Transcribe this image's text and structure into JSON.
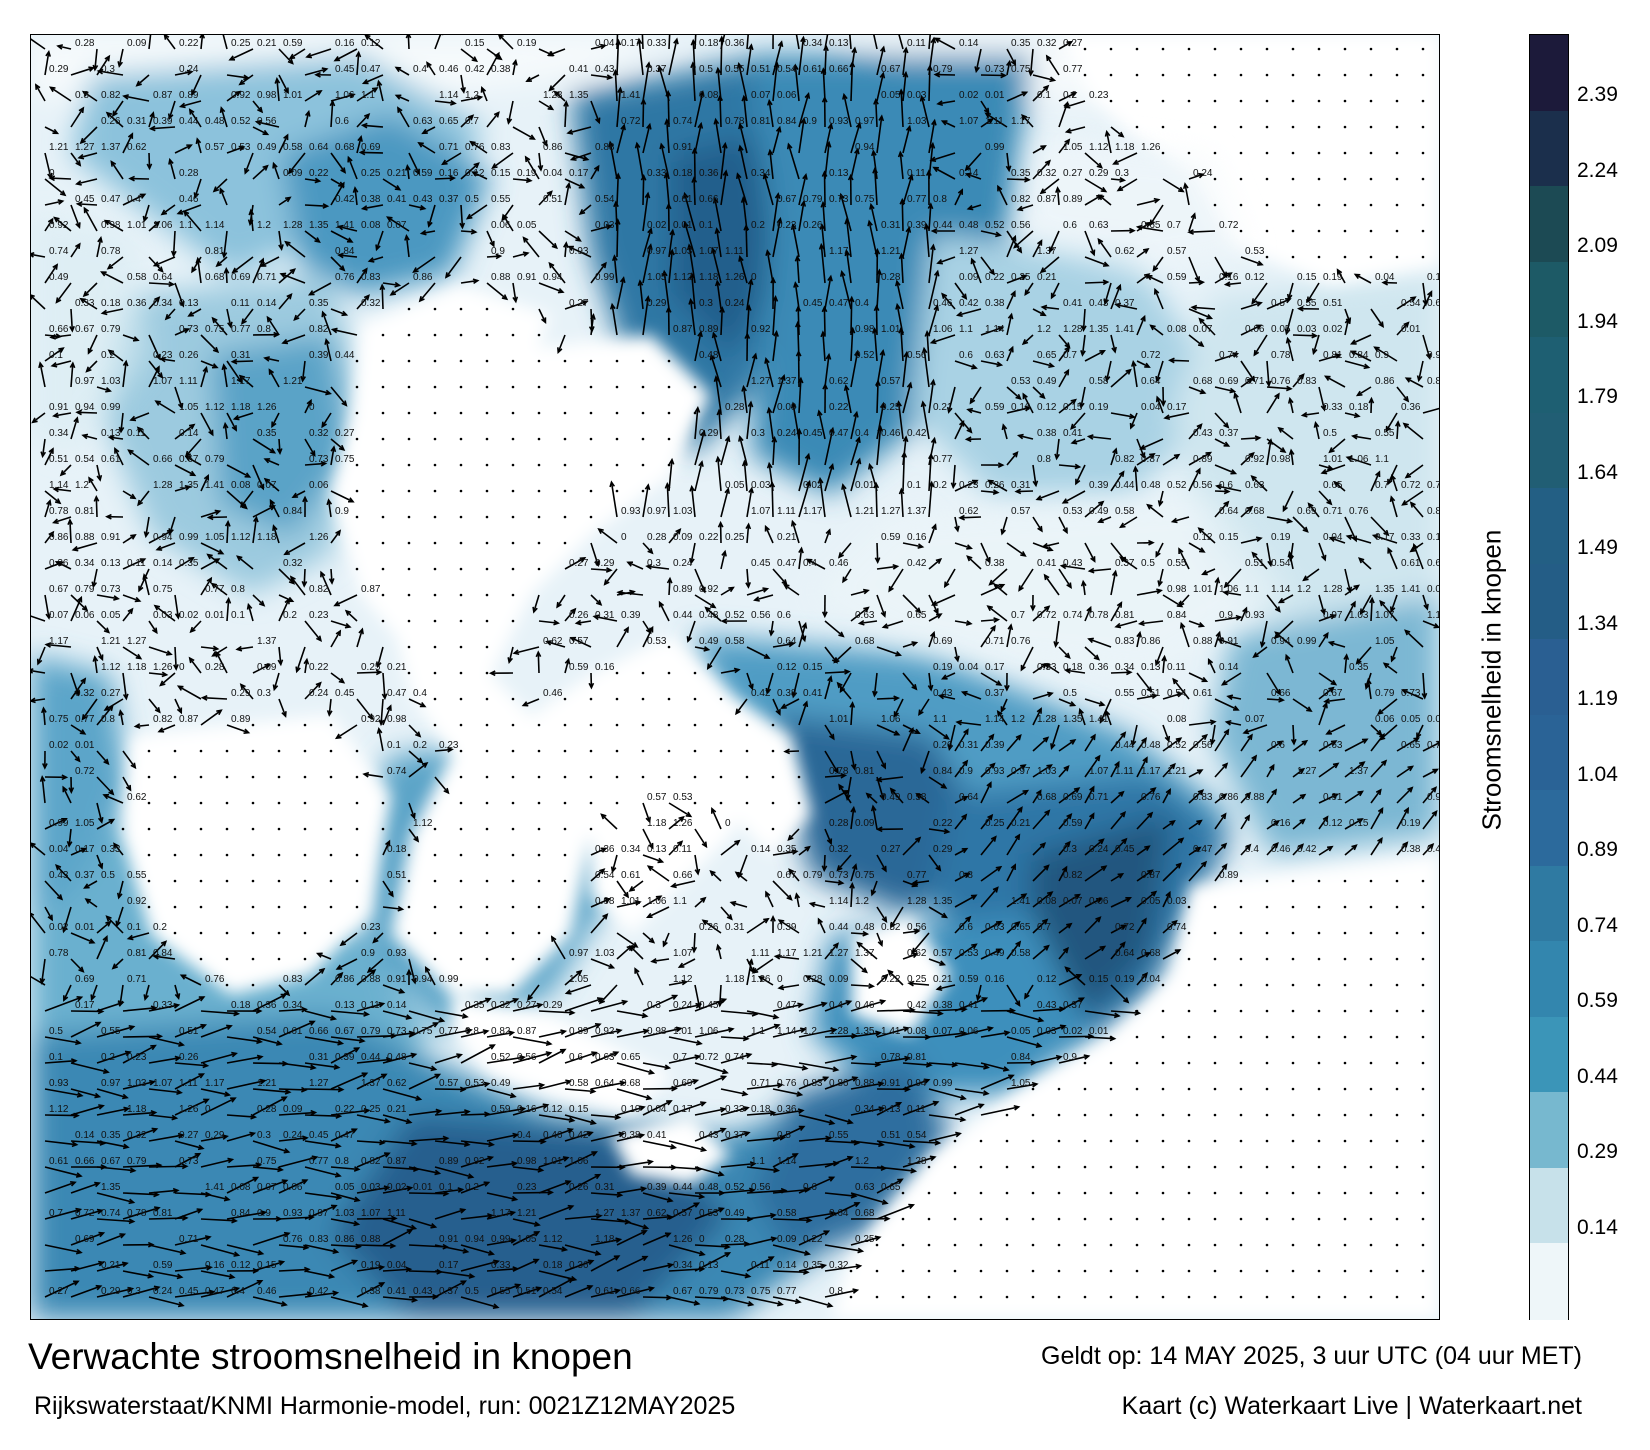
{
  "title": "Verwachte stroomsnelheid in knopen",
  "subtitle": "Rijkswaterstaat/KNMI Harmonie-model, run: 0021Z12MAY2025",
  "valid_time": "Geldt op: 14 MAY 2025, 3 uur UTC (04 uur MET)",
  "credit": "Kaart (c) Waterkaart Live | Waterkaart.net",
  "colorbar": {
    "label": "Stroomsnelheid in knopen",
    "ticks": [
      "2.39",
      "2.24",
      "2.09",
      "1.94",
      "1.79",
      "1.64",
      "1.49",
      "1.34",
      "1.19",
      "1.04",
      "0.89",
      "0.74",
      "0.59",
      "0.44",
      "0.29",
      "0.14"
    ],
    "colors": [
      "#1c1a3a",
      "#1b2f4c",
      "#1c4a54",
      "#1d5a66",
      "#1e5f72",
      "#215e74",
      "#235f84",
      "#245d86",
      "#2a5f92",
      "#2a6396",
      "#2c6a9c",
      "#2f7aa2",
      "#3386ae",
      "#3b95b8",
      "#77b8cf",
      "#c7e1ea",
      "#eef6f9"
    ]
  },
  "map": {
    "land_color": "#ffffff",
    "sea_low_color": "#e9f3f8",
    "sea_mid_color": "#6aaecf",
    "sea_high_color": "#2c6e9e",
    "arrow_color": "#000000",
    "current_labels": [
      "0.28",
      "0.09",
      "0.22",
      "0.25",
      "0.21",
      "0.59",
      "0.16",
      "0.12",
      "0.15",
      "0.19",
      "0.04",
      "0.17",
      "0.33",
      "0.18",
      "0.36",
      "0.34",
      "0.13",
      "0.11",
      "0.14",
      "0.35",
      "0.32",
      "0.27",
      "0.29",
      "0.3",
      "0.24",
      "0.45",
      "0.47",
      "0.4",
      "0.46",
      "0.42",
      "0.38",
      "0.41",
      "0.43",
      "0.37",
      "0.5",
      "0.55",
      "0.51",
      "0.54",
      "0.61",
      "0.66",
      "0.67",
      "0.79",
      "0.73",
      "0.75",
      "0.77",
      "0.8",
      "0.82",
      "0.87",
      "0.89",
      "0.92",
      "0.98",
      "1.01",
      "1.06",
      "1.1",
      "1.14",
      "1.2",
      "1.28",
      "1.35",
      "1.41",
      "0.08",
      "0.07",
      "0.06",
      "0.05",
      "0.03",
      "0.02",
      "0.01",
      "0.1",
      "0.2",
      "0.23",
      "0.26",
      "0.31",
      "0.39",
      "0.44",
      "0.48",
      "0.52",
      "0.56",
      "0.6",
      "0.63",
      "0.65",
      "0.7",
      "0.72",
      "0.74",
      "0.78",
      "0.81",
      "0.84",
      "0.9",
      "0.93",
      "0.97",
      "1.03",
      "1.07",
      "1.11",
      "1.17",
      "1.21",
      "1.27",
      "1.37",
      "0.62",
      "0.57",
      "0.53",
      "0.49",
      "0.58",
      "0.64",
      "0.68",
      "0.69",
      "0.71",
      "0.76",
      "0.83",
      "0.86",
      "0.88",
      "0.91",
      "0.94",
      "0.99",
      "1.05",
      "1.12",
      "1.18",
      "1.26",
      "0"
    ]
  }
}
